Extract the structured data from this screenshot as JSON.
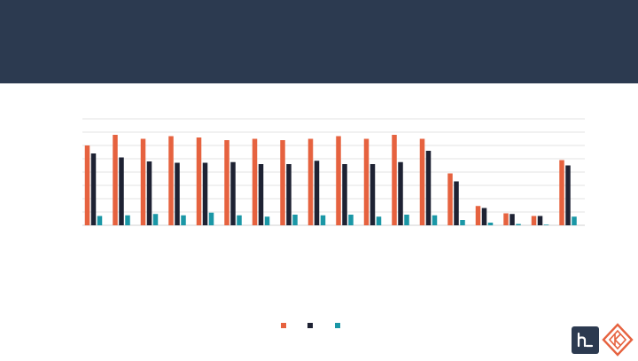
{
  "colors": {
    "header": "#2c3a50",
    "grid": "#e3e3e3"
  },
  "chart_data": {
    "type": "bar",
    "categories": [
      "",
      "",
      "",
      "",
      "",
      "",
      "",
      "",
      "",
      "",
      "",
      "",
      "",
      "",
      "",
      "",
      "",
      ""
    ],
    "ylim": [
      0,
      8
    ],
    "grid": true,
    "legend_position": "bottom",
    "series": [
      {
        "color": "#e6623f",
        "values": [
          6.0,
          6.8,
          6.5,
          6.7,
          6.6,
          6.4,
          6.5,
          6.4,
          6.5,
          6.7,
          6.5,
          6.8,
          6.5,
          3.9,
          1.45,
          0.9,
          0.7,
          4.9
        ]
      },
      {
        "color": "#1e2233",
        "values": [
          5.4,
          5.1,
          4.8,
          4.7,
          4.7,
          4.75,
          4.6,
          4.6,
          4.85,
          4.6,
          4.6,
          4.75,
          5.6,
          3.3,
          1.3,
          0.85,
          0.7,
          4.5
        ]
      },
      {
        "color": "#1a97a6",
        "values": [
          0.7,
          0.75,
          0.85,
          0.75,
          0.95,
          0.75,
          0.65,
          0.8,
          0.75,
          0.8,
          0.65,
          0.8,
          0.75,
          0.4,
          0.2,
          0.1,
          0.05,
          0.65
        ]
      }
    ]
  },
  "logos": {
    "h_logo": "h-logo-icon",
    "diamond_logo": "diamond-logo-icon"
  }
}
